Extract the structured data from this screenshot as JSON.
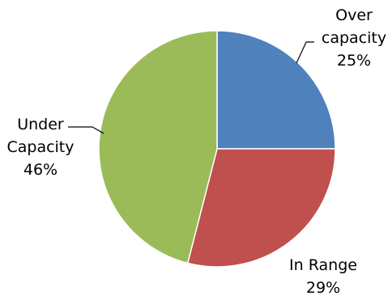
{
  "chart_data": {
    "type": "pie",
    "slices": [
      {
        "name": "Over capacity",
        "value": 25,
        "color": "#4F81BD",
        "label_lines": [
          "Over",
          "capacity",
          "25%"
        ]
      },
      {
        "name": "In Range",
        "value": 29,
        "color": "#C0504D",
        "label_lines": [
          "In Range",
          "29%"
        ]
      },
      {
        "name": "Under Capacity",
        "value": 46,
        "color": "#9BBB59",
        "label_lines": [
          "Under",
          "Capacity",
          "46%"
        ]
      }
    ],
    "start_angle_deg": 90,
    "direction": "clockwise",
    "legend": "none"
  }
}
